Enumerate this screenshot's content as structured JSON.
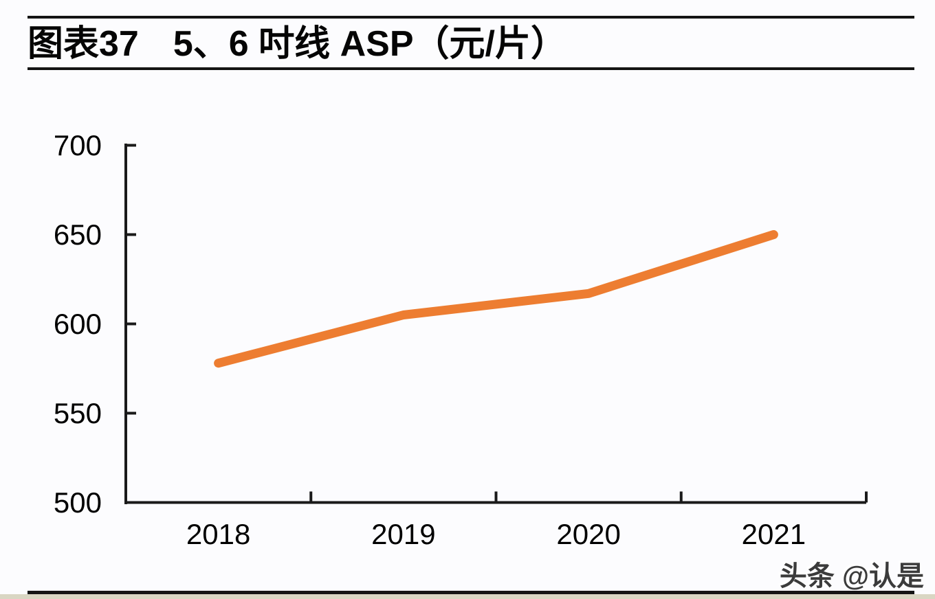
{
  "page": {
    "background_color": "#fcfcfe",
    "rule_color": "#141414",
    "footer_strip_color": "#d9d6c3"
  },
  "header": {
    "figure_label": "图表37",
    "title": "5、6 吋线 ASP（元/片）"
  },
  "watermark": {
    "text": "头条 @认是"
  },
  "chart_data": {
    "type": "line",
    "title": "5、6 吋线 ASP（元/片）",
    "categories": [
      "2018",
      "2019",
      "2020",
      "2021"
    ],
    "values": [
      578,
      605,
      617,
      650
    ],
    "xlabel": "",
    "ylabel": "",
    "ylim": [
      500,
      700
    ],
    "yticks": [
      500,
      550,
      600,
      650,
      700
    ],
    "grid": false,
    "legend": "none",
    "line_color": "#ED7D31",
    "axis_color": "#1a1a1a",
    "tick_label_color": "#000000"
  }
}
